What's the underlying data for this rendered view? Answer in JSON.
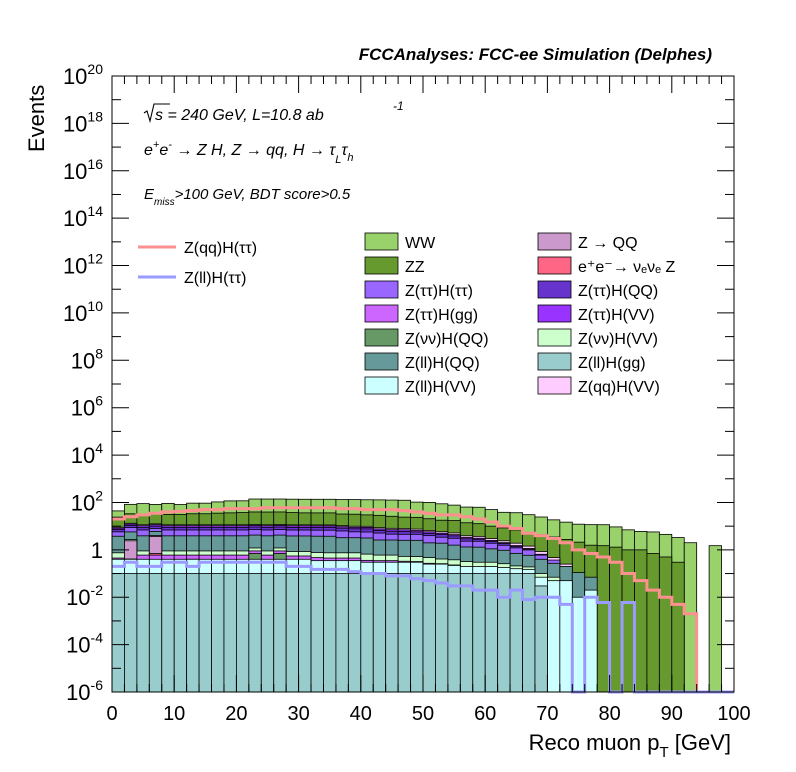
{
  "chart_data": {
    "type": "histogram",
    "header": "FCCAnalyses: FCC-ee Simulation (Delphes)",
    "xlabel": "Reco muon p",
    "xlabel_sub": "T",
    "xlabel_unit": " [GeV]",
    "ylabel": "Events",
    "xlim": [
      0,
      100
    ],
    "ylim": [
      1e-06,
      1e+20
    ],
    "yscale": "log",
    "grid": false,
    "bin_width": 2,
    "x_ticks": [
      "0",
      "10",
      "20",
      "30",
      "40",
      "50",
      "60",
      "70",
      "80",
      "90",
      "100"
    ],
    "y_ticks": [
      {
        "base": "10",
        "exp": "20",
        "pow": 20
      },
      {
        "base": "10",
        "exp": "18",
        "pow": 18
      },
      {
        "base": "10",
        "exp": "16",
        "pow": 16
      },
      {
        "base": "10",
        "exp": "14",
        "pow": 14
      },
      {
        "base": "10",
        "exp": "12",
        "pow": 12
      },
      {
        "base": "10",
        "exp": "10",
        "pow": 10
      },
      {
        "base": "10",
        "exp": "8",
        "pow": 8
      },
      {
        "base": "10",
        "exp": "6",
        "pow": 6
      },
      {
        "base": "10",
        "exp": "4",
        "pow": 4
      },
      {
        "base": "10",
        "exp": "2",
        "pow": 2
      },
      {
        "base": "1",
        "exp": "",
        "pow": 0
      },
      {
        "base": "10",
        "exp": "-2",
        "pow": -2
      },
      {
        "base": "10",
        "exp": "-4",
        "pow": -4
      },
      {
        "base": "10",
        "exp": "-6",
        "pow": -6
      }
    ],
    "annotations": {
      "energy": "s = 240 GeV, L=10.8 ab",
      "energy_exp": "-1",
      "process_prefix": "e",
      "process_sup1": "+",
      "process_mid": "e",
      "process_sup2": "-",
      "process_body": " → Z H, Z  → qq, H  → τ",
      "process_sub1": "L",
      "process_tau2": "τ",
      "process_sub2": "h",
      "cut_prefix": "E",
      "cut_sub": "miss",
      "cut_body": ">100 GeV, BDT score>0.5"
    },
    "legend_lines": [
      {
        "label": "Z(qq)H(ττ)",
        "color": "#ff9090"
      },
      {
        "label": "Z(ll)H(ττ)",
        "color": "#9a9aff"
      }
    ],
    "legend_fills": [
      {
        "label": "WW",
        "color": "#99d16b"
      },
      {
        "label": "Z → QQ",
        "color": "#cc99cc"
      },
      {
        "label": "ZZ",
        "color": "#66992e"
      },
      {
        "label": "e⁺e⁻→ νₑνₑ Z",
        "color": "#ff6685"
      },
      {
        "label": "Z(ττ)H(ττ)",
        "color": "#9966ff"
      },
      {
        "label": "Z(ττ)H(QQ)",
        "color": "#6633cc"
      },
      {
        "label": "Z(ττ)H(gg)",
        "color": "#cc66ff"
      },
      {
        "label": "Z(ττ)H(VV)",
        "color": "#9933ff"
      },
      {
        "label": "Z(νν)H(QQ)",
        "color": "#669966"
      },
      {
        "label": "Z(νν)H(VV)",
        "color": "#ccffcc"
      },
      {
        "label": "Z(ll)H(QQ)",
        "color": "#669999"
      },
      {
        "label": "Z(ll)H(gg)",
        "color": "#99cccc"
      },
      {
        "label": "Z(ll)H(VV)",
        "color": "#ccffff"
      },
      {
        "label": "Z(qq)H(VV)",
        "color": "#ffccff"
      }
    ],
    "stack_bottom_up": [
      "Z(ll)H(gg)",
      "Z(ll)H(VV)",
      "Z(νν)H(QQ)",
      "Z(ττ)H(gg)",
      "e⁺e⁻→ νₑνₑ Z",
      "Z → QQ",
      "Z(νν)H(VV)",
      "Z(ll)H(QQ)",
      "Z(ττ)H(ττ)",
      "Z(ττ)H(QQ)",
      "Z(ττ)H(VV)",
      "Z(qq)H(VV)",
      "ZZ",
      "WW"
    ],
    "series": [
      {
        "name": "Z(ll)H(gg)",
        "color": "#99cccc",
        "values": [
          0.1,
          0.1,
          0.1,
          0.1,
          0.1,
          0.1,
          0.1,
          0.1,
          0.1,
          0.1,
          0.1,
          0.1,
          0.1,
          0.1,
          0.1,
          0.1,
          0.1,
          0.1,
          0.1,
          0.1,
          0.1,
          0.1,
          0.1,
          0.1,
          0.1,
          0.1,
          0.1,
          0.1,
          0.1,
          0.1,
          0.1,
          0.1,
          0.1,
          0.1,
          0.03,
          0,
          0,
          0,
          0,
          0,
          0,
          0,
          0,
          0,
          0,
          0,
          0,
          0,
          0,
          0
        ]
      },
      {
        "name": "Z(ll)H(VV)",
        "color": "#ccffff",
        "values": [
          0.3,
          0.3,
          0.3,
          0.3,
          0.3,
          0.3,
          0.3,
          0.3,
          0.3,
          0.3,
          0.3,
          0.3,
          0.3,
          0.3,
          0.3,
          0.3,
          0.25,
          0.25,
          0.25,
          0.25,
          0.2,
          0.2,
          0.2,
          0.2,
          0.2,
          0.15,
          0.15,
          0.12,
          0.1,
          0.1,
          0.1,
          0.08,
          0.06,
          0.05,
          0.04,
          0.05,
          0.05,
          0.01,
          0.02,
          0,
          0,
          0,
          0,
          0,
          0,
          0,
          0,
          0,
          0,
          0
        ]
      },
      {
        "name": "Z(νν)H(QQ)",
        "color": "#669966",
        "values": [
          0,
          0,
          0,
          0,
          0,
          0,
          3e-06,
          0,
          0,
          0,
          0,
          0.3,
          0,
          0.3,
          0,
          0,
          0,
          0,
          0,
          0,
          0,
          0,
          0,
          0,
          0,
          0,
          0,
          0,
          0,
          0,
          0,
          0,
          0,
          0,
          0,
          0,
          0,
          0,
          0,
          0,
          0,
          0,
          0,
          0,
          0,
          0,
          0,
          0,
          0,
          0
        ]
      },
      {
        "name": "Z(ττ)H(gg)",
        "color": "#cc66ff",
        "values": [
          0.05,
          0.01,
          0.2,
          0.2,
          0.2,
          0.2,
          0.2,
          0.2,
          0.2,
          0.2,
          0.2,
          0.2,
          0.2,
          0.2,
          0.15,
          0.15,
          0.12,
          0.1,
          0.1,
          0.1,
          0.06,
          0.05,
          0.05,
          0.03,
          0.02,
          0.02,
          0.01,
          0.01,
          0,
          0,
          0,
          0,
          0,
          0,
          0,
          0,
          0,
          0,
          0,
          0,
          0,
          0,
          0,
          0,
          0,
          0,
          0,
          0,
          0,
          0
        ]
      },
      {
        "name": "e⁺e⁻→ νₑνₑ Z",
        "color": "#ff6685",
        "values": [
          0,
          0,
          0,
          0.1,
          0,
          0,
          0,
          0,
          0,
          0,
          0,
          0,
          0,
          0,
          0,
          0,
          0,
          0,
          0,
          0,
          0,
          0,
          0,
          0,
          0,
          0,
          0,
          0,
          0,
          0,
          0,
          0,
          0,
          0,
          0,
          0,
          0,
          0,
          0,
          0,
          0,
          0,
          0,
          0,
          0,
          0,
          0,
          0,
          0,
          0
        ]
      },
      {
        "name": "Z → QQ",
        "color": "#cc99cc",
        "values": [
          0,
          2,
          0,
          3,
          0,
          0,
          0,
          0,
          0,
          0,
          0,
          0,
          0,
          0,
          0,
          0,
          0,
          0,
          0,
          0,
          0,
          0,
          0,
          0,
          0,
          0,
          0,
          0,
          0,
          0,
          0,
          0,
          0,
          0,
          0,
          0,
          0,
          0,
          0,
          0,
          0,
          0,
          0,
          0,
          0,
          0,
          0,
          0,
          0,
          0
        ]
      },
      {
        "name": "Z(νν)H(VV)",
        "color": "#ccffcc",
        "values": [
          0.3,
          0.3,
          0.3,
          0.3,
          0.3,
          0.3,
          0.3,
          0.3,
          0.3,
          0.3,
          0.3,
          0.3,
          0.3,
          0.3,
          0.3,
          0.3,
          0.3,
          0.3,
          0.3,
          0.3,
          0.3,
          0.25,
          0.25,
          0.2,
          0.2,
          0.2,
          0.15,
          0.15,
          0.12,
          0.1,
          0.1,
          0.08,
          0.05,
          0.04,
          0.03,
          0.02,
          0,
          0,
          0,
          0,
          0,
          0,
          0,
          0,
          0,
          0,
          0,
          0,
          0,
          0
        ]
      },
      {
        "name": "Z(ll)H(QQ)",
        "color": "#669999",
        "values": [
          3,
          3,
          3,
          2,
          3,
          3,
          3,
          3,
          3,
          3,
          3,
          3,
          3,
          3,
          3,
          3,
          3,
          3,
          2.5,
          2.5,
          2.5,
          2,
          2,
          2,
          2,
          1.5,
          1.5,
          1.2,
          1,
          1,
          0.8,
          0.7,
          0.5,
          0.4,
          0.3,
          0.2,
          0.15,
          0.1,
          0.05,
          0,
          0,
          0,
          0,
          0,
          0,
          0,
          0,
          0,
          0,
          0
        ]
      },
      {
        "name": "Z(ττ)H(ττ)",
        "color": "#9966ff",
        "values": [
          2,
          3,
          3,
          2,
          3,
          3,
          3,
          3,
          3,
          3,
          3,
          3,
          3,
          3,
          3,
          3,
          3,
          3,
          3,
          2.5,
          2.5,
          2.5,
          2,
          2,
          2,
          2,
          1.5,
          1.5,
          1,
          1,
          0.8,
          0.6,
          0.5,
          0.4,
          0.2,
          0.1,
          0,
          0,
          0,
          0,
          0,
          0,
          0,
          0,
          0,
          0,
          0,
          0,
          0,
          0
        ]
      },
      {
        "name": "Z(ττ)H(QQ)",
        "color": "#6633cc",
        "values": [
          1.5,
          2,
          2,
          2,
          2,
          2,
          2,
          2,
          2,
          2,
          2,
          2,
          2,
          2,
          2,
          2,
          2,
          2,
          2,
          2,
          2,
          1.5,
          1.5,
          1.5,
          1.2,
          1,
          1,
          0.8,
          0.6,
          0.5,
          0.4,
          0.3,
          0.2,
          0.1,
          0.05,
          0,
          0,
          0,
          0,
          0,
          0,
          0,
          0,
          0,
          0,
          0,
          0,
          0,
          0,
          0
        ]
      },
      {
        "name": "Z(ττ)H(VV)",
        "color": "#9933ff",
        "values": [
          1,
          1.5,
          1.5,
          1.5,
          1.5,
          1.5,
          1.5,
          1.5,
          1.5,
          1.5,
          1.5,
          1.5,
          1.5,
          1.5,
          1.5,
          1.5,
          1.5,
          1.5,
          1.2,
          1.2,
          1.2,
          1,
          1,
          1,
          0.8,
          0.8,
          0.6,
          0.5,
          0.4,
          0.3,
          0.2,
          0.15,
          0.1,
          0.05,
          0,
          0,
          0,
          0,
          0,
          0,
          0,
          0,
          0,
          0,
          0,
          0,
          0,
          0,
          0,
          0
        ]
      },
      {
        "name": "Z(qq)H(VV)",
        "color": "#ffccff",
        "values": [
          0.8,
          1,
          1,
          1,
          1,
          1,
          1,
          1,
          1,
          1,
          1,
          1,
          1,
          1,
          1,
          1,
          1,
          1,
          1,
          1,
          1,
          1,
          1,
          1,
          1,
          0.8,
          0.8,
          0.8,
          0.6,
          0.6,
          0.5,
          0.4,
          0.4,
          0.3,
          0.2,
          0.1,
          0.05,
          0,
          0,
          0,
          0,
          0,
          0,
          0,
          0,
          0,
          0,
          0,
          0,
          0
        ]
      },
      {
        "name": "ZZ",
        "color": "#66992e",
        "values": [
          15,
          20,
          18,
          20,
          20,
          20,
          22,
          22,
          24,
          25,
          26,
          28,
          28,
          28,
          26,
          25,
          25,
          25,
          22,
          22,
          20,
          20,
          18,
          16,
          16,
          14,
          12,
          12,
          10,
          9,
          7,
          6,
          5,
          4,
          3.5,
          3,
          2.5,
          2,
          1.5,
          1.5,
          1.3,
          1,
          1,
          0.7,
          0.5,
          0.3,
          0,
          0,
          0,
          0
        ]
      },
      {
        "name": "WW",
        "color": "#99d16b",
        "values": [
          20,
          50,
          60,
          50,
          60,
          50,
          60,
          60,
          70,
          80,
          80,
          100,
          100,
          100,
          100,
          100,
          100,
          100,
          100,
          100,
          100,
          100,
          100,
          100,
          80,
          80,
          70,
          60,
          50,
          50,
          40,
          30,
          30,
          25,
          20,
          15,
          12,
          10,
          10,
          10,
          8,
          6,
          5,
          5,
          4,
          3,
          2,
          0,
          1.5,
          0
        ]
      }
    ],
    "lines": [
      {
        "name": "Z(qq)H(ττ)",
        "color": "#ff9090",
        "values": [
          20,
          25,
          30,
          35,
          40,
          42,
          45,
          50,
          50,
          55,
          55,
          55,
          60,
          60,
          60,
          60,
          60,
          60,
          55,
          55,
          50,
          50,
          50,
          45,
          40,
          35,
          30,
          30,
          25,
          20,
          15,
          10,
          8,
          5,
          4,
          3,
          2,
          1,
          0.7,
          0.5,
          0.3,
          0.1,
          0.05,
          0.02,
          0.01,
          0.005,
          0.002,
          1e-06,
          1e-06,
          1e-06
        ]
      },
      {
        "name": "Z(ll)H(ττ)",
        "color": "#9a9aff",
        "values": [
          0.2,
          0.3,
          0.2,
          0.2,
          0.3,
          0.3,
          0.2,
          0.3,
          0.3,
          0.3,
          0.3,
          0.3,
          0.3,
          0.3,
          0.2,
          0.2,
          0.15,
          0.15,
          0.15,
          0.12,
          0.1,
          0.1,
          0.08,
          0.08,
          0.06,
          0.05,
          0.04,
          0.03,
          0.03,
          0.02,
          0.02,
          0.01,
          0.02,
          0.008,
          0.01,
          0.01,
          0.005,
          1e-06,
          0.01,
          0.006,
          1e-06,
          0.006,
          1e-06,
          1e-06,
          1e-06,
          1e-06,
          1e-06,
          1e-06,
          1e-06,
          1e-06
        ]
      }
    ]
  }
}
